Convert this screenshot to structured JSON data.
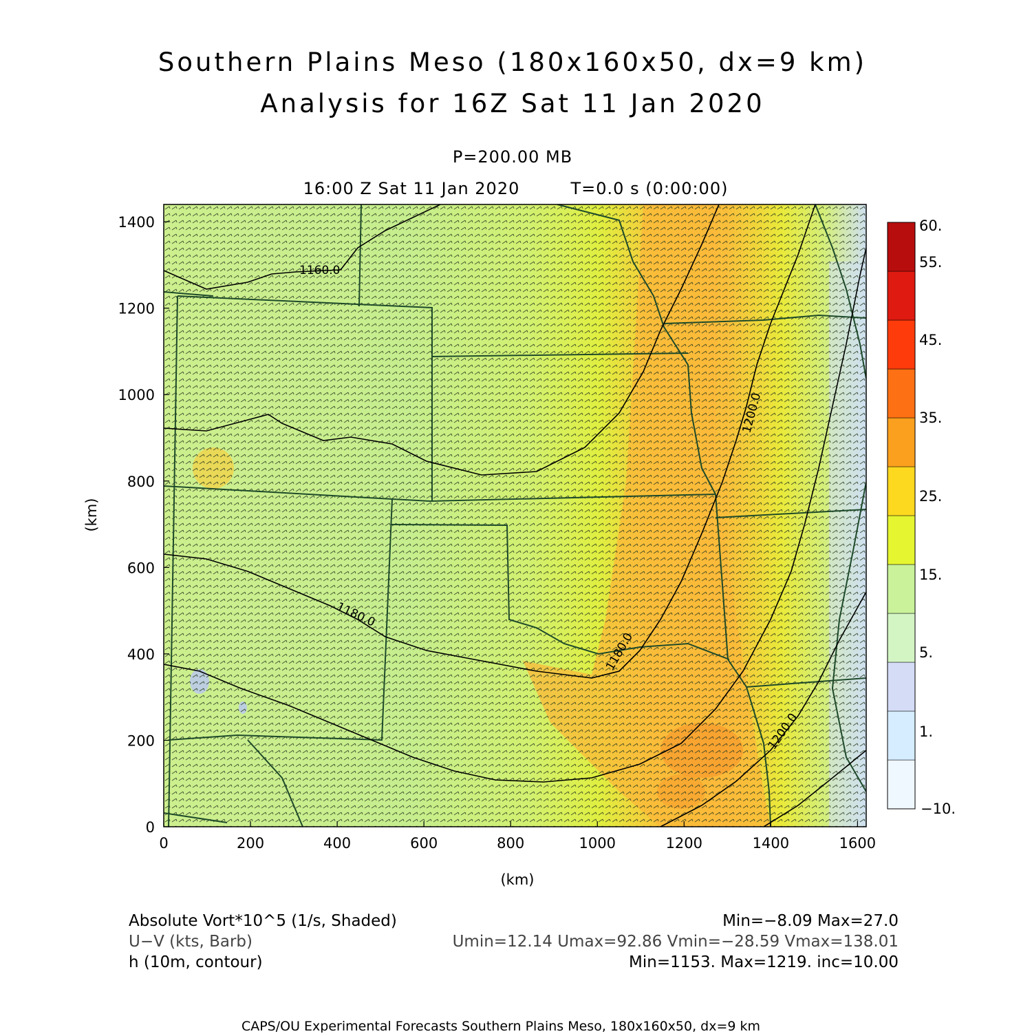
{
  "header": {
    "title_line1": "Southern Plains Meso (180x160x50, dx=9 km)",
    "title_line2": "Analysis for 16Z Sat 11 Jan 2020",
    "pressure": "P=200.00 MB",
    "valid_time": "16:00 Z Sat 11 Jan 2020",
    "forecast_time": "T=0.0 s (0:00:00)"
  },
  "axes": {
    "x_label": "(km)",
    "y_label": "(km)",
    "x_ticks": [
      "0",
      "200",
      "400",
      "600",
      "800",
      "1000",
      "1200",
      "1400",
      "1600"
    ],
    "y_ticks": [
      "0",
      "200",
      "400",
      "600",
      "800",
      "1000",
      "1200",
      "1400"
    ],
    "x_range": [
      0,
      1620
    ],
    "y_range": [
      0,
      1440
    ]
  },
  "colorbar": {
    "labels": [
      "60.",
      "55.",
      "45.",
      "35.",
      "25.",
      "15.",
      "5.",
      "1.",
      "−10."
    ],
    "colors": [
      "#f0f8ff",
      "#d6ecff",
      "#d4dcf6",
      "#d3f5c4",
      "#c9f29a",
      "#e5f530",
      "#fcd81f",
      "#fba01e",
      "#fd7013",
      "#fd3b0b",
      "#df1a10",
      "#b80d0d"
    ]
  },
  "contours": {
    "labels": [
      "1160.0",
      "1180.0",
      "1180.0",
      "1200.0",
      "1200.0"
    ]
  },
  "footer": {
    "field1_name": "Absolute Vort*10^5 (1/s, Shaded)",
    "field1_stats": "Min=−8.09 Max=27.0",
    "field2_name": "U−V (kts, Barb)",
    "field2_stats": "Umin=12.14 Umax=92.86 Vmin=−28.59 Vmax=138.01",
    "field3_name": "h (10m, contour)",
    "field3_stats": "Min=1153. Max=1219. inc=10.00",
    "credit": "CAPS/OU Experimental Forecasts  Southern Plains Meso, 180x160x50, dx=9 km"
  }
}
